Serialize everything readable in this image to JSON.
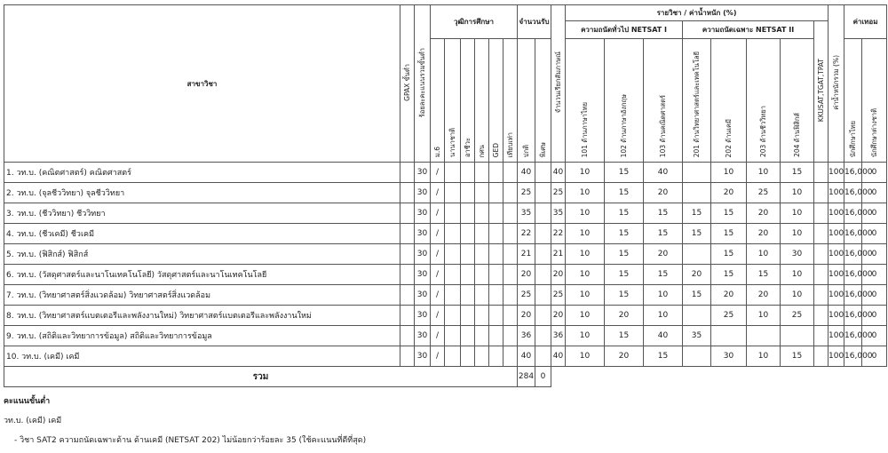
{
  "table": {
    "header": {
      "name": "สาขาวิชา",
      "gpax": "GPAX ขั้นต่ำ",
      "percent": "ร้อยละคะแนนรวมขั้นต่ำ",
      "qualification": "วุฒิการศึกษา",
      "qualifications": [
        "ม.6",
        "นานาชาติ",
        "อาชีวะ",
        "กศน",
        "GED",
        "เทียบเท่า"
      ],
      "admit": "จำนวนรับ",
      "admit_types": [
        "ปกติ",
        "พิเศษ"
      ],
      "interview": "จำนวนเรียกสัมภาษณ์",
      "subjects": "รายวิชา / ค่าน้ำหนัก (%)",
      "netsat1": "ความถนัดทั่วไป NETSAT I",
      "netsat1_subjects": [
        "101 ด้านภาษาไทย",
        "102 ด้านภาษาอังกฤษ",
        "103 ด้านคณิตศาสตร์"
      ],
      "netsat2": "ความถนัดเฉพาะ NETSAT II",
      "netsat2_subjects": [
        "201 ด้านวิทยาศาสตร์และเทคโนโลยี",
        "202 ด้านเคมี",
        "203 ด้านชีววิทยา",
        "204 ด้านฟิสิกส์"
      ],
      "other": "KKUSAT,TGAT,TPAT",
      "total_weight": "ค่าน้ำหนักรวม (%)",
      "fee": "ค่าเทอม",
      "fee_types": [
        "นักศึกษาไทย",
        "นักศึกษาต่างชาติ"
      ]
    },
    "rows": [
      [
        "1. วท.บ. (คณิตศาสตร์) คณิตศาสตร์",
        null,
        "30",
        "/",
        null,
        null,
        null,
        null,
        null,
        "40",
        null,
        "40",
        "10",
        "15",
        "40",
        null,
        "10",
        "10",
        "15",
        null,
        "100",
        "16,000",
        "0"
      ],
      [
        "2. วท.บ. (จุลชีววิทยา) จุลชีววิทยา",
        null,
        "30",
        "/",
        null,
        null,
        null,
        null,
        null,
        "25",
        null,
        "25",
        "10",
        "15",
        "20",
        null,
        "20",
        "25",
        "10",
        null,
        "100",
        "16,000",
        "0"
      ],
      [
        "3. วท.บ. (ชีววิทยา) ชีววิทยา",
        null,
        "30",
        "/",
        null,
        null,
        null,
        null,
        null,
        "35",
        null,
        "35",
        "10",
        "15",
        "15",
        "15",
        "15",
        "20",
        "10",
        null,
        "100",
        "16,000",
        "0"
      ],
      [
        "4. วท.บ. (ชีวเคมี) ชีวเคมี",
        null,
        "30",
        "/",
        null,
        null,
        null,
        null,
        null,
        "22",
        null,
        "22",
        "10",
        "15",
        "15",
        "15",
        "15",
        "20",
        "10",
        null,
        "100",
        "16,000",
        "0"
      ],
      [
        "5. วท.บ. (ฟิสิกส์) ฟิสิกส์",
        null,
        "30",
        "/",
        null,
        null,
        null,
        null,
        null,
        "21",
        null,
        "21",
        "10",
        "15",
        "20",
        null,
        "15",
        "10",
        "30",
        null,
        "100",
        "16,000",
        "0"
      ],
      [
        "6. วท.บ. (วัสดุศาสตร์และนาโนเทคโนโลยี) วัสดุศาสตร์และนาโนเทคโนโลยี",
        null,
        "30",
        "/",
        null,
        null,
        null,
        null,
        null,
        "20",
        null,
        "20",
        "10",
        "15",
        "15",
        "20",
        "15",
        "15",
        "10",
        null,
        "100",
        "16,000",
        "0"
      ],
      [
        "7. วท.บ. (วิทยาศาสตร์สิ่งแวดล้อม) วิทยาศาสตร์สิ่งแวดล้อม",
        null,
        "30",
        "/",
        null,
        null,
        null,
        null,
        null,
        "25",
        null,
        "25",
        "10",
        "15",
        "10",
        "15",
        "20",
        "20",
        "10",
        null,
        "100",
        "16,000",
        "0"
      ],
      [
        "8. วท.บ. (วิทยาศาสตร์แบตเตอรีและพลังงานใหม่) วิทยาศาสตร์แบตเตอรีและพลังงานใหม่",
        null,
        "30",
        "/",
        null,
        null,
        null,
        null,
        null,
        "20",
        null,
        "20",
        "10",
        "20",
        "10",
        null,
        "25",
        "10",
        "25",
        null,
        "100",
        "16,000",
        "0"
      ],
      [
        "9. วท.บ. (สถิติและวิทยาการข้อมูล) สถิติและวิทยาการข้อมูล",
        null,
        "30",
        "/",
        null,
        null,
        null,
        null,
        null,
        "36",
        null,
        "36",
        "10",
        "15",
        "40",
        "35",
        null,
        null,
        null,
        null,
        "100",
        "16,000",
        "0"
      ],
      [
        "10. วท.บ. (เคมี) เคมี",
        null,
        "30",
        "/",
        null,
        null,
        null,
        null,
        null,
        "40",
        null,
        "40",
        "10",
        "20",
        "15",
        null,
        "30",
        "10",
        "15",
        null,
        "100",
        "16,000",
        "0"
      ]
    ],
    "total": {
      "label": "รวม",
      "normal": "284",
      "special": "0"
    }
  },
  "notes": {
    "title": "คะแนนขั้นต่ำ",
    "program": "วท.บ. (เคมี) เคมี",
    "items": [
      "- วิชา SAT2 ความถนัดเฉพาะด้าน ด้านเคมี (NETSAT 202) ไม่น้อยกว่าร้อยละ 35 (ใช้คะแนนที่ดีที่สุด)"
    ]
  }
}
